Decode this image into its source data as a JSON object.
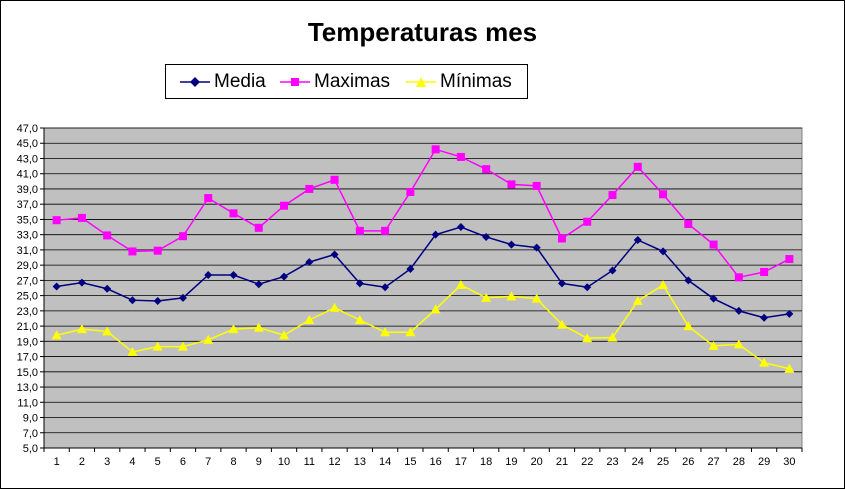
{
  "chart_data": {
    "type": "line",
    "title": "Temperaturas mes",
    "xlabel": "",
    "ylabel": "",
    "x": [
      1,
      2,
      3,
      4,
      5,
      6,
      7,
      8,
      9,
      10,
      11,
      12,
      13,
      14,
      15,
      16,
      17,
      18,
      19,
      20,
      21,
      22,
      23,
      24,
      25,
      26,
      27,
      28,
      29,
      30
    ],
    "ylim": [
      5.0,
      47.0
    ],
    "yticks": [
      "5,0",
      "7,0",
      "9,0",
      "11,0",
      "13,0",
      "15,0",
      "17,0",
      "19,0",
      "21,0",
      "23,0",
      "25,0",
      "27,0",
      "29,0",
      "31,0",
      "33,0",
      "35,0",
      "37,0",
      "39,0",
      "41,0",
      "43,0",
      "45,0",
      "47,0"
    ],
    "grid": true,
    "legend_position": "top",
    "plot_background": "#c0c0c0",
    "series": [
      {
        "name": "Media",
        "color": "#000080",
        "marker": "diamond",
        "values": [
          26.2,
          26.7,
          25.9,
          24.4,
          24.3,
          24.7,
          27.7,
          27.7,
          26.5,
          27.5,
          29.4,
          30.4,
          26.6,
          26.1,
          28.5,
          33.0,
          34.0,
          32.7,
          31.7,
          31.3,
          26.6,
          26.1,
          28.3,
          32.3,
          30.8,
          27.0,
          24.6,
          23.0,
          22.1,
          22.6
        ]
      },
      {
        "name": "Maximas",
        "color": "#ff00ff",
        "marker": "square",
        "values": [
          34.9,
          35.2,
          32.9,
          30.8,
          30.9,
          32.8,
          37.8,
          35.8,
          33.9,
          36.8,
          39.0,
          40.2,
          33.5,
          33.5,
          38.6,
          44.2,
          43.2,
          41.6,
          39.6,
          39.4,
          32.5,
          34.7,
          38.2,
          41.9,
          38.3,
          34.4,
          31.7,
          27.4,
          28.1,
          29.8
        ]
      },
      {
        "name": "Mínimas",
        "color": "#ffff00",
        "marker": "triangle",
        "values": [
          19.8,
          20.6,
          20.3,
          17.6,
          18.3,
          18.3,
          19.2,
          20.6,
          20.8,
          19.8,
          21.8,
          23.4,
          21.8,
          20.2,
          20.2,
          23.2,
          26.4,
          24.7,
          24.9,
          24.6,
          21.2,
          19.4,
          19.5,
          24.3,
          26.4,
          21.0,
          18.4,
          18.6,
          16.2,
          15.4
        ]
      }
    ]
  }
}
